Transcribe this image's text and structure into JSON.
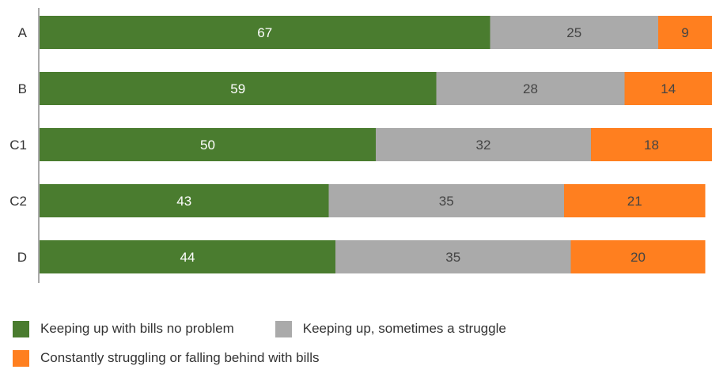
{
  "chart_data": {
    "type": "bar",
    "orientation": "horizontal",
    "stacked": true,
    "categories": [
      "A",
      "B",
      "C1",
      "C2",
      "D"
    ],
    "series": [
      {
        "name": "Keeping up with bills no problem",
        "color": "#4a7c2f",
        "label_color": "#ffffff",
        "values": [
          67,
          59,
          50,
          43,
          44
        ]
      },
      {
        "name": "Keeping up, sometimes a struggle",
        "color": "#aaaaaa",
        "label_color": "#444444",
        "values": [
          25,
          28,
          32,
          35,
          35
        ]
      },
      {
        "name": "Constantly struggling or falling behind with bills",
        "color": "#ff7f1f",
        "label_color": "#444444",
        "values": [
          9,
          14,
          18,
          21,
          20
        ]
      }
    ],
    "title": "",
    "xlabel": "",
    "ylabel": "",
    "xlim": [
      0,
      100
    ],
    "grid": false,
    "legend_position": "bottom-left"
  }
}
